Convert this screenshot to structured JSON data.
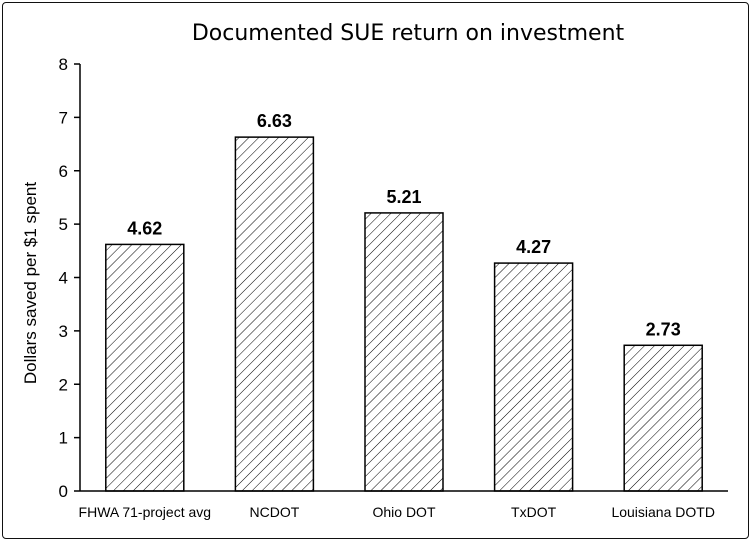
{
  "chart_data": {
    "type": "bar",
    "title": "Documented SUE return on investment",
    "ylabel": "Dollars saved per $1 spent",
    "xlabel": "",
    "categories": [
      "FHWA 71-project avg",
      "NCDOT",
      "Ohio DOT",
      "TxDOT",
      "Louisiana DOTD"
    ],
    "values": [
      4.62,
      6.63,
      5.21,
      4.27,
      2.73
    ],
    "value_labels": [
      "4.62",
      "6.63",
      "5.21",
      "4.27",
      "2.73"
    ],
    "ylim": [
      0,
      8
    ],
    "yticks": [
      "0",
      "1",
      "2",
      "3",
      "4",
      "5",
      "6",
      "7",
      "8"
    ],
    "grid": false,
    "bar_fill": "diagonal-hatch",
    "colors": {
      "bar_stroke": "#000000",
      "hatch": "#000000",
      "background": "#ffffff"
    }
  }
}
